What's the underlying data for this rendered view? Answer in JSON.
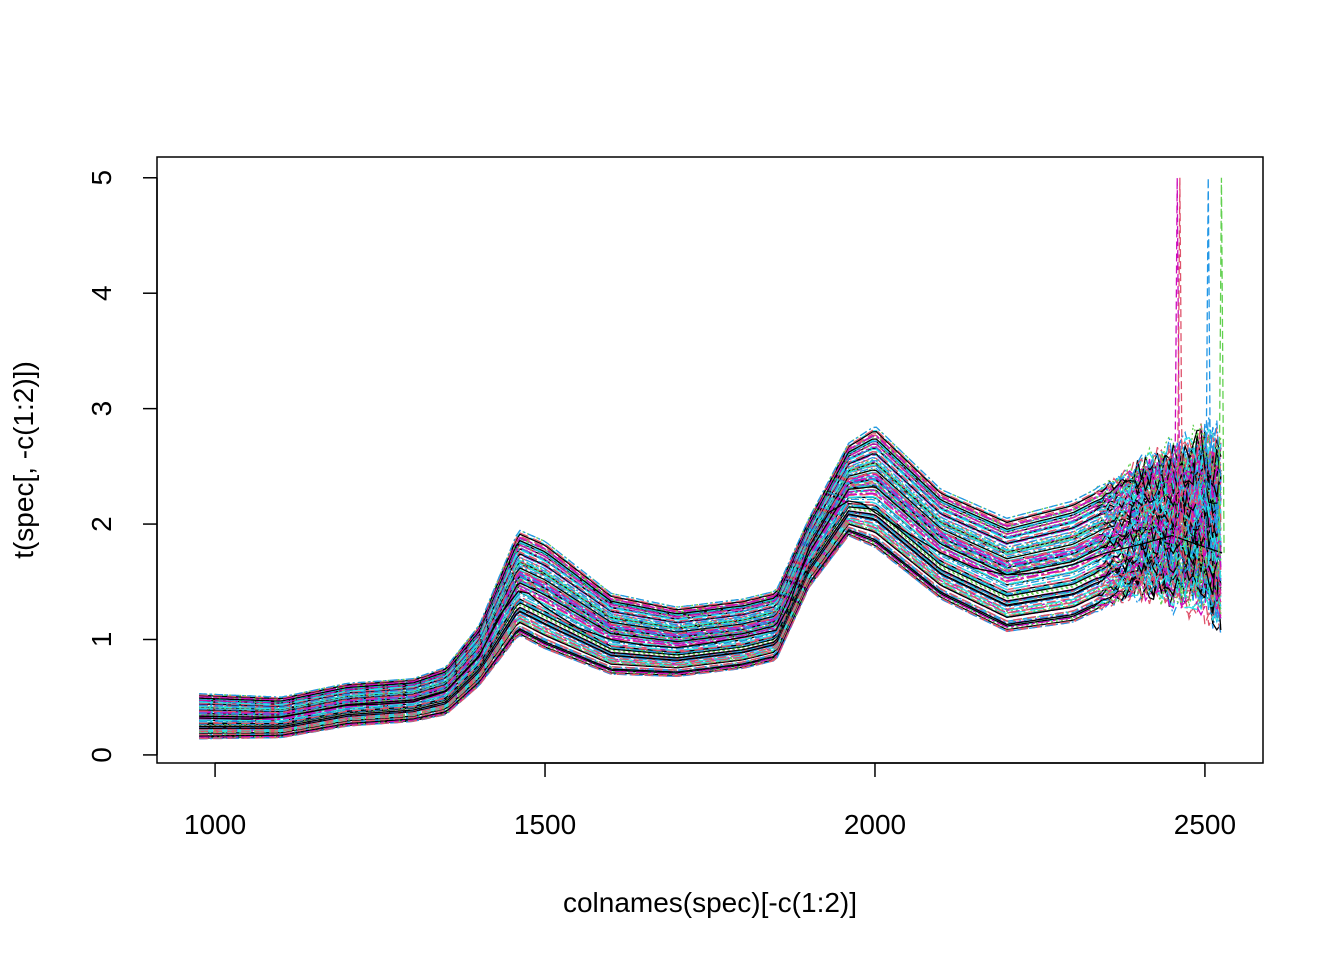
{
  "chart_data": {
    "type": "line",
    "title": "",
    "xlabel": "colnames(spec)[-c(1:2)]",
    "ylabel": "t(spec[, -c(1:2)])",
    "xlim": [
      912,
      2588
    ],
    "ylim": [
      -0.07,
      5.18
    ],
    "x_ticks": [
      1000,
      1500,
      2000,
      2500
    ],
    "x_tick_labels": [
      "1000",
      "1500",
      "2000",
      "2500"
    ],
    "y_ticks": [
      0,
      1,
      2,
      3,
      4,
      5
    ],
    "y_tick_labels": [
      "0",
      "1",
      "2",
      "3",
      "4",
      "5"
    ],
    "x_range": [
      976,
      2526
    ],
    "grid": false,
    "legend": "none",
    "palette": [
      "#000000",
      "#DF536B",
      "#61D04F",
      "#2297E6",
      "#28E2E5",
      "#CD0BBC",
      "#F5C710",
      "#9E9E9E"
    ],
    "series_count": 160,
    "mean_spectrum": {
      "x": [
        976,
        1050,
        1100,
        1150,
        1200,
        1250,
        1300,
        1350,
        1400,
        1430,
        1460,
        1475,
        1500,
        1550,
        1600,
        1650,
        1700,
        1750,
        1800,
        1850,
        1870,
        1900,
        1930,
        1960,
        1980,
        2000,
        2050,
        2100,
        2150,
        2200,
        2250,
        2300,
        2350,
        2400,
        2450,
        2500,
        2526
      ],
      "y": [
        0.32,
        0.31,
        0.33,
        0.38,
        0.43,
        0.44,
        0.46,
        0.55,
        0.85,
        1.2,
        1.42,
        1.4,
        1.28,
        1.1,
        1.0,
        0.95,
        0.93,
        0.97,
        1.02,
        1.08,
        1.3,
        1.8,
        2.1,
        2.2,
        2.18,
        2.1,
        1.92,
        1.75,
        1.62,
        1.56,
        1.58,
        1.65,
        1.75,
        1.82,
        1.9,
        1.8,
        1.75
      ]
    },
    "envelope_min": {
      "x": [
        976,
        1100,
        1200,
        1300,
        1350,
        1400,
        1460,
        1500,
        1600,
        1700,
        1800,
        1850,
        1900,
        1960,
        2000,
        2100,
        2200,
        2300,
        2400,
        2500,
        2526
      ],
      "y": [
        0.14,
        0.15,
        0.25,
        0.29,
        0.35,
        0.6,
        1.04,
        0.92,
        0.7,
        0.68,
        0.75,
        0.82,
        1.45,
        1.9,
        1.8,
        1.35,
        1.07,
        1.15,
        1.42,
        1.38,
        1.2
      ]
    },
    "envelope_max": {
      "x": [
        976,
        1100,
        1200,
        1300,
        1350,
        1400,
        1460,
        1500,
        1600,
        1700,
        1800,
        1850,
        1900,
        1960,
        2000,
        2100,
        2200,
        2300,
        2400,
        2500,
        2526
      ],
      "y": [
        0.53,
        0.5,
        0.62,
        0.66,
        0.76,
        1.12,
        1.95,
        1.85,
        1.4,
        1.28,
        1.35,
        1.42,
        2.05,
        2.7,
        2.85,
        2.3,
        2.05,
        2.2,
        2.5,
        2.7,
        2.6
      ]
    },
    "spikes": [
      {
        "x": 2458,
        "y": 5.0,
        "color": "#CD0BBC"
      },
      {
        "x": 2462,
        "y": 5.0,
        "color": "#DF536B"
      },
      {
        "x": 2505,
        "y": 5.0,
        "color": "#2297E6"
      },
      {
        "x": 2525,
        "y": 5.0,
        "color": "#61D04F"
      }
    ]
  }
}
